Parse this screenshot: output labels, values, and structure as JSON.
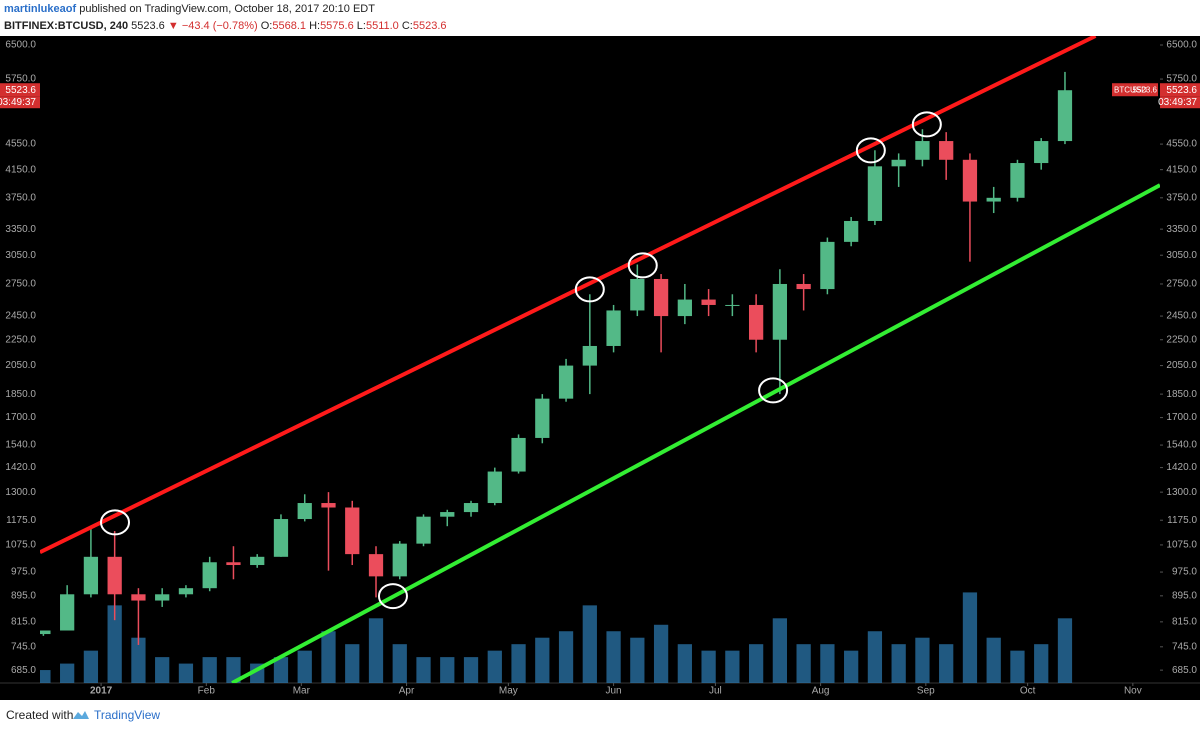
{
  "header": {
    "author": "martinlukeaof",
    "published": "published on TradingView.com, October 18, 2017 20:10 EDT",
    "symbol": "BITFINEX:BTCUSD, 240",
    "last": "5523.6",
    "change": "−43.4 (−0.78%)",
    "open_label": "O:",
    "open": "5568.1",
    "high_label": "H:",
    "high": "5575.6",
    "low_label": "L:",
    "low": "5511.0",
    "close_label": "C:",
    "close": "5523.6"
  },
  "footer": {
    "created": "Created with",
    "brand": "TradingView"
  },
  "chart_data": {
    "type": "candlestick",
    "log_scale": true,
    "grid": false,
    "up_color": "#53b987",
    "down_color": "#eb4d5c",
    "volume_color": "#2e7fb8",
    "x": [
      -17,
      -10,
      -3,
      4,
      11,
      18,
      25,
      32,
      39,
      46,
      53,
      60,
      67,
      74,
      81,
      88,
      95,
      102,
      109,
      116,
      123,
      130,
      137,
      144,
      151,
      158,
      165,
      172,
      179,
      186,
      193,
      200,
      207,
      214,
      221,
      228,
      235,
      242,
      249,
      256,
      263,
      270,
      277,
      284
    ],
    "open": [
      780,
      790,
      900,
      1030,
      900,
      880,
      900,
      920,
      1010,
      1000,
      1030,
      1180,
      1250,
      1230,
      1040,
      960,
      1080,
      1190,
      1210,
      1250,
      1400,
      1580,
      1820,
      2050,
      2200,
      2500,
      2800,
      2450,
      2600,
      2550,
      2550,
      2250,
      2750,
      2700,
      3200,
      3450,
      4200,
      4300,
      4600,
      4300,
      3700,
      3750,
      4250,
      4600
    ],
    "high": [
      790,
      930,
      1150,
      1130,
      920,
      920,
      930,
      1030,
      1070,
      1040,
      1200,
      1290,
      1300,
      1260,
      1070,
      1090,
      1200,
      1220,
      1260,
      1420,
      1600,
      1850,
      2100,
      2650,
      2550,
      2950,
      2850,
      2750,
      2700,
      2650,
      2650,
      2900,
      2850,
      3250,
      3500,
      4450,
      4400,
      4800,
      4750,
      4400,
      3900,
      4300,
      4650,
      5900
    ],
    "low": [
      775,
      790,
      890,
      820,
      750,
      860,
      890,
      910,
      950,
      990,
      1030,
      1170,
      980,
      1000,
      890,
      950,
      1070,
      1150,
      1190,
      1240,
      1390,
      1550,
      1800,
      1850,
      2150,
      2450,
      2150,
      2380,
      2450,
      2450,
      2150,
      1850,
      2500,
      2650,
      3150,
      3400,
      3900,
      4200,
      4000,
      2980,
      3550,
      3700,
      4150,
      4550
    ],
    "close": [
      790,
      900,
      1030,
      900,
      880,
      900,
      920,
      1010,
      1000,
      1030,
      1180,
      1250,
      1230,
      1040,
      960,
      1080,
      1190,
      1210,
      1250,
      1400,
      1580,
      1820,
      2050,
      2200,
      2500,
      2800,
      2450,
      2600,
      2550,
      2550,
      2250,
      2750,
      2700,
      3200,
      3450,
      4200,
      4300,
      4600,
      4300,
      3700,
      3750,
      4250,
      4600,
      5523.6
    ],
    "volume": [
      2,
      3,
      5,
      12,
      7,
      4,
      3,
      4,
      4,
      3,
      4,
      5,
      8,
      6,
      10,
      6,
      4,
      4,
      4,
      5,
      6,
      7,
      8,
      12,
      8,
      7,
      9,
      6,
      5,
      5,
      6,
      10,
      6,
      6,
      5,
      8,
      6,
      7,
      6,
      14,
      7,
      5,
      6,
      10
    ],
    "y2lim": [
      0,
      100
    ],
    "xlim": [
      -18,
      312
    ],
    "xticks": [
      {
        "value": 0,
        "label": "2017"
      },
      {
        "value": 31,
        "label": "Feb"
      },
      {
        "value": 59,
        "label": "Mar"
      },
      {
        "value": 90,
        "label": "Apr"
      },
      {
        "value": 120,
        "label": "May"
      },
      {
        "value": 151,
        "label": "Jun"
      },
      {
        "value": 181,
        "label": "Jul"
      },
      {
        "value": 212,
        "label": "Aug"
      },
      {
        "value": 243,
        "label": "Sep"
      },
      {
        "value": 273,
        "label": "Oct"
      },
      {
        "value": 304,
        "label": "Nov"
      }
    ],
    "ylim": [
      654,
      6714
    ],
    "yticks": [
      {
        "value": 6500,
        "label": "6500.0"
      },
      {
        "value": 5750,
        "label": "5750.0"
      },
      {
        "value": 4550,
        "label": "4550.0"
      },
      {
        "value": 4150,
        "label": "4150.0"
      },
      {
        "value": 3750,
        "label": "3750.0"
      },
      {
        "value": 3350,
        "label": "3350.0"
      },
      {
        "value": 3050,
        "label": "3050.0"
      },
      {
        "value": 2750,
        "label": "2750.0"
      },
      {
        "value": 2450,
        "label": "2450.0"
      },
      {
        "value": 2250,
        "label": "2250.0"
      },
      {
        "value": 2050,
        "label": "2050.0"
      },
      {
        "value": 1850,
        "label": "1850.0"
      },
      {
        "value": 1700,
        "label": "1700.0"
      },
      {
        "value": 1540,
        "label": "1540.0"
      },
      {
        "value": 1420,
        "label": "1420.0"
      },
      {
        "value": 1300,
        "label": "1300.0"
      },
      {
        "value": 1175,
        "label": "1175.0"
      },
      {
        "value": 1075,
        "label": "1075.0"
      },
      {
        "value": 975,
        "label": "975.0"
      },
      {
        "value": 895,
        "label": "895.0"
      },
      {
        "value": 815,
        "label": "815.0"
      },
      {
        "value": 745,
        "label": "745.0"
      },
      {
        "value": 685,
        "label": "685.0"
      }
    ],
    "trend_lines": [
      {
        "color": "#ff1a1a",
        "x": [
          -18,
          293
        ],
        "y": [
          1047,
          6714
        ]
      },
      {
        "color": "#33ee33",
        "x": [
          38.6,
          312
        ],
        "y": [
          654,
          3925
        ]
      }
    ],
    "highlights": {
      "x": [
        4.1,
        144,
        159.6,
        226.8,
        243.3,
        86,
        198
      ],
      "y": [
        1166,
        2697,
        2940,
        4448,
        4884,
        894,
        1875
      ]
    },
    "last_price": {
      "value": 5523.6,
      "symbol": "BTCUSD",
      "countdown": "03:49:37",
      "color": "#d32f2f"
    }
  }
}
